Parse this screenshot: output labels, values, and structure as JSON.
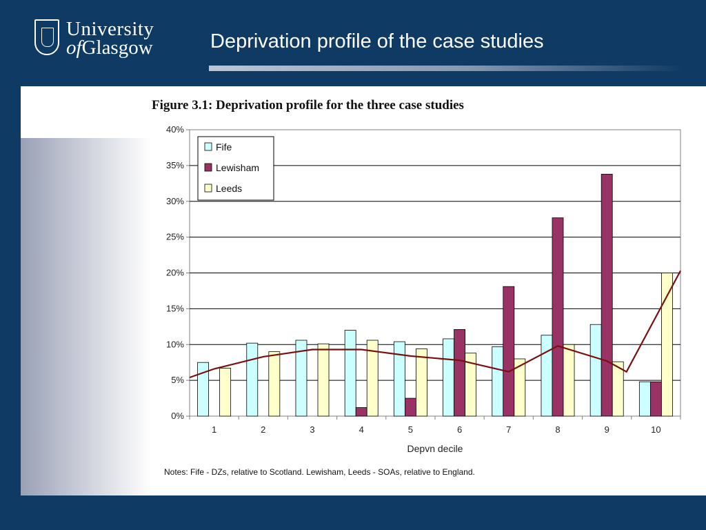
{
  "header": {
    "logo_line1": "University",
    "logo_line2_prefix": "of",
    "logo_line2": "Glasgow",
    "slide_title": "Deprivation profile of the case studies"
  },
  "figure": {
    "title": "Figure 3.1: Deprivation profile for the three case studies",
    "notes": "Notes: Fife - DZs, relative to Scotland. Lewisham, Leeds - SOAs, relative to England."
  },
  "chart_data": {
    "type": "bar",
    "categories": [
      "1",
      "2",
      "3",
      "4",
      "5",
      "6",
      "7",
      "8",
      "9",
      "10"
    ],
    "series": [
      {
        "name": "Fife",
        "color": "#ccffff",
        "values": [
          7.5,
          10.2,
          10.6,
          12.0,
          10.4,
          10.8,
          9.7,
          11.3,
          12.8,
          4.8
        ]
      },
      {
        "name": "Lewisham",
        "color": "#993366",
        "values": [
          0,
          0,
          0,
          1.2,
          2.5,
          12.1,
          18.1,
          27.7,
          33.8,
          4.8
        ]
      },
      {
        "name": "Leeds",
        "color": "#ffffcc",
        "values": [
          6.7,
          9.0,
          10.1,
          10.6,
          9.4,
          8.8,
          8.0,
          10.0,
          7.6,
          20.0
        ]
      }
    ],
    "trend_line": {
      "color": "#7a0f0f",
      "x": [
        0.5,
        1,
        2,
        3,
        4,
        5,
        6,
        7,
        8,
        9,
        9.4,
        10.5
      ],
      "y": [
        5.4,
        6.6,
        8.3,
        9.3,
        9.3,
        8.4,
        7.8,
        6.2,
        9.8,
        7.7,
        6.2,
        20.3
      ]
    },
    "xlabel": "Depvn decile",
    "ylabel": "",
    "ylim": [
      0,
      40
    ],
    "yticks": [
      "0%",
      "5%",
      "10%",
      "15%",
      "20%",
      "25%",
      "30%",
      "35%",
      "40%"
    ],
    "grid": true,
    "legend_position": "top-left"
  }
}
